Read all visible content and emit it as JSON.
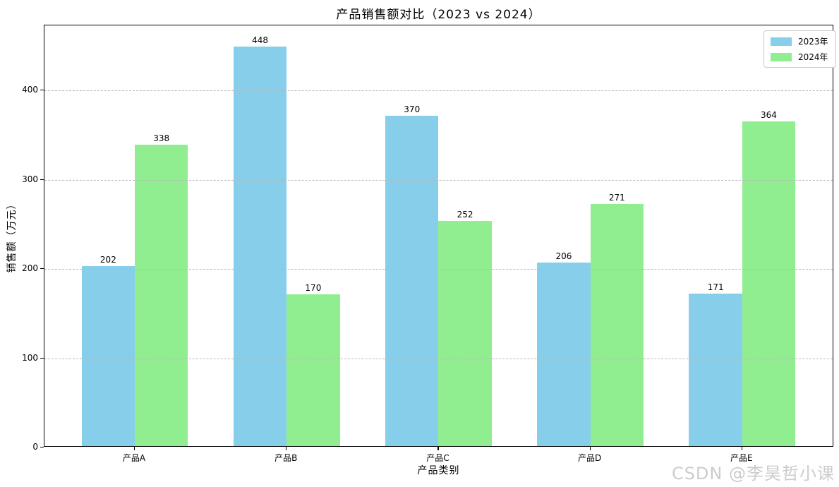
{
  "watermark": "CSDN @李昊哲小课",
  "chart_data": {
    "type": "bar",
    "title": "产品销售额对比（2023 vs 2024）",
    "xlabel": "产品类别",
    "ylabel": "销售额（万元）",
    "categories": [
      "产品A",
      "产品B",
      "产品C",
      "产品D",
      "产品E"
    ],
    "series": [
      {
        "name": "2023年",
        "color": "#87CEEB",
        "values": [
          202,
          448,
          370,
          206,
          171
        ]
      },
      {
        "name": "2024年",
        "color": "#90EE90",
        "values": [
          338,
          170,
          252,
          271,
          364
        ]
      }
    ],
    "yticks": [
      0,
      100,
      200,
      300,
      400
    ],
    "ylim": [
      0,
      473
    ],
    "bar_labels": true,
    "grid": "horizontal-dashed",
    "legend_position": "top-right",
    "bar_label_color": "#000000",
    "grid_color": "#b9b9b9"
  }
}
